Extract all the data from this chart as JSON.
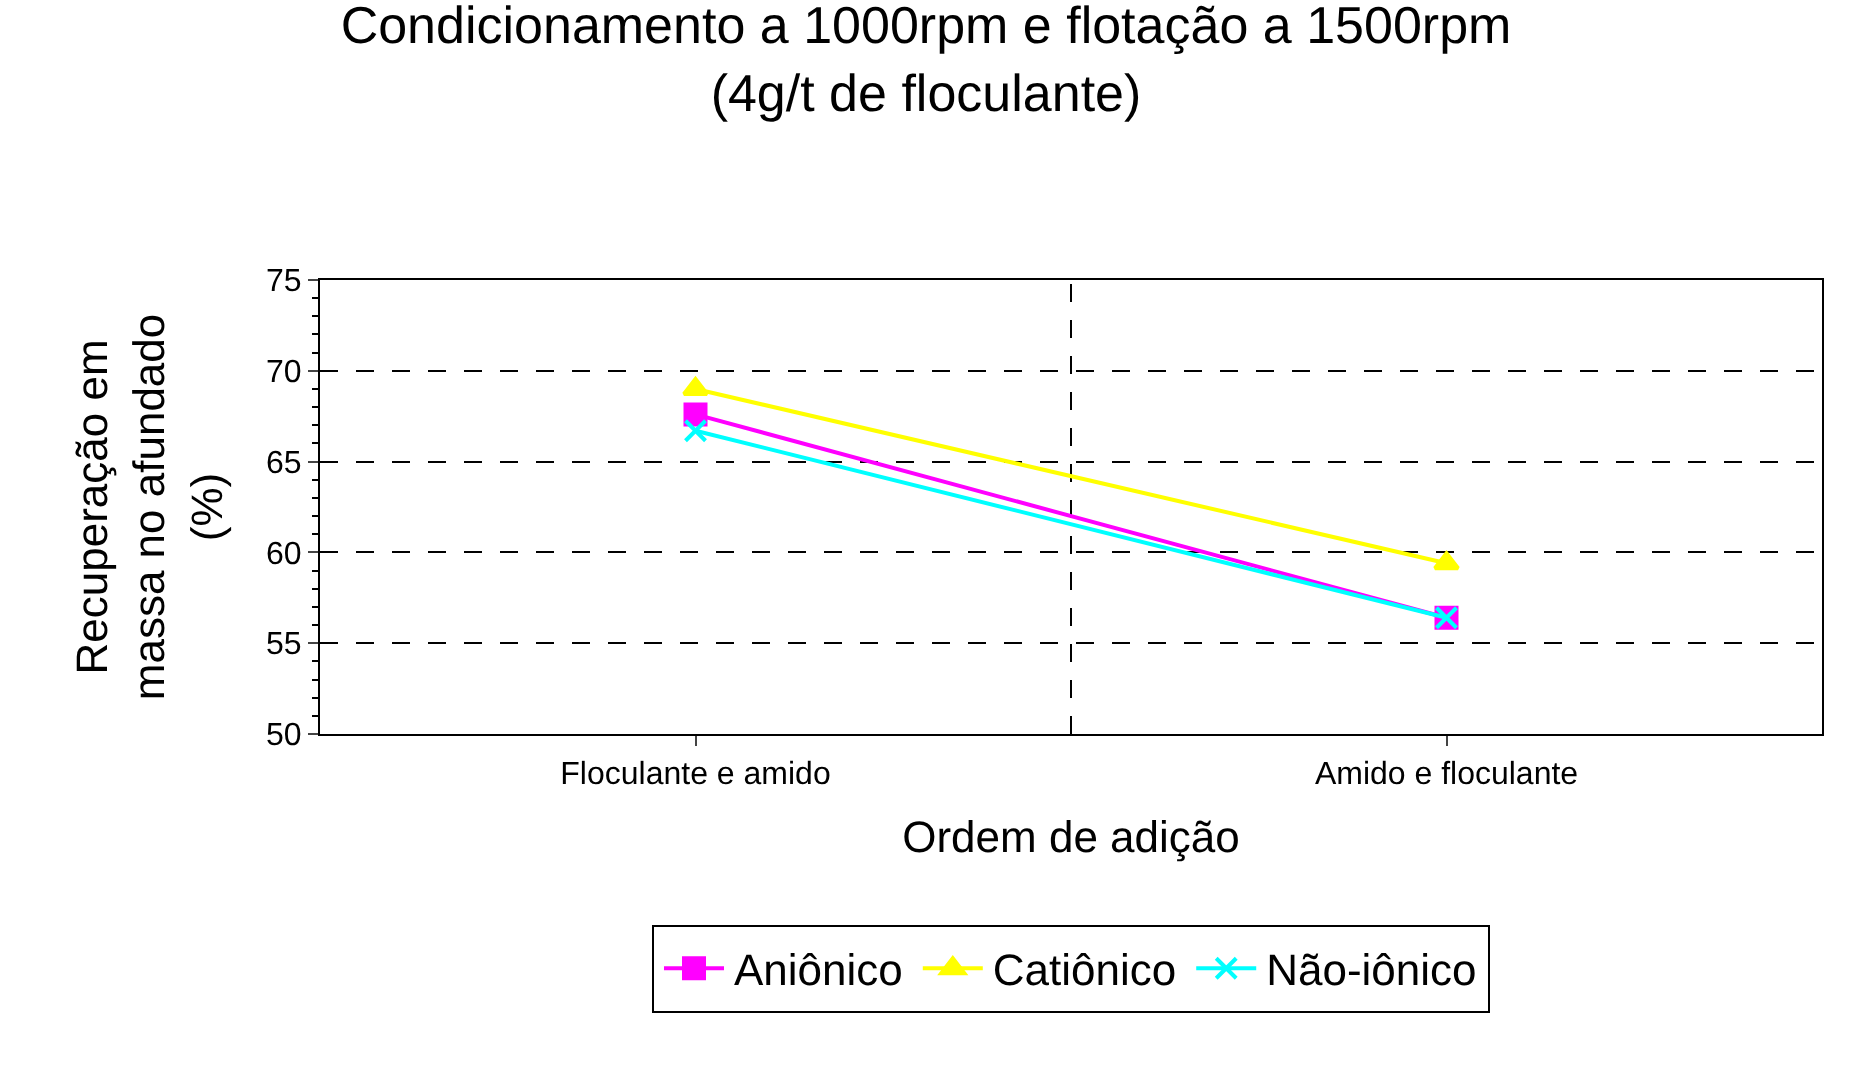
{
  "chart_data": {
    "type": "line",
    "title": "Condicionamento a 1000rpm e flotação a 1500rpm\n(4g/t de floculante)",
    "xlabel": "Ordem de adição",
    "ylabel": "Recuperação em\nmassa no afundado\n(%)",
    "categories": [
      "Floculante e amido",
      "Amido e floculante"
    ],
    "series": [
      {
        "name": "Aniônico",
        "color": "#ff00ff",
        "marker": "square",
        "values": [
          67.6,
          56.4
        ]
      },
      {
        "name": "Catiônico",
        "color": "#ffff00",
        "marker": "triangle",
        "values": [
          69.0,
          59.4
        ]
      },
      {
        "name": "Não-iônico",
        "color": "#00ffff",
        "marker": "cross",
        "values": [
          66.7,
          56.4
        ]
      }
    ],
    "ylim": [
      50,
      75
    ],
    "yticks": [
      50,
      55,
      60,
      65,
      70,
      75
    ],
    "grid": true,
    "legend": "bottom",
    "line_style": "solid"
  }
}
